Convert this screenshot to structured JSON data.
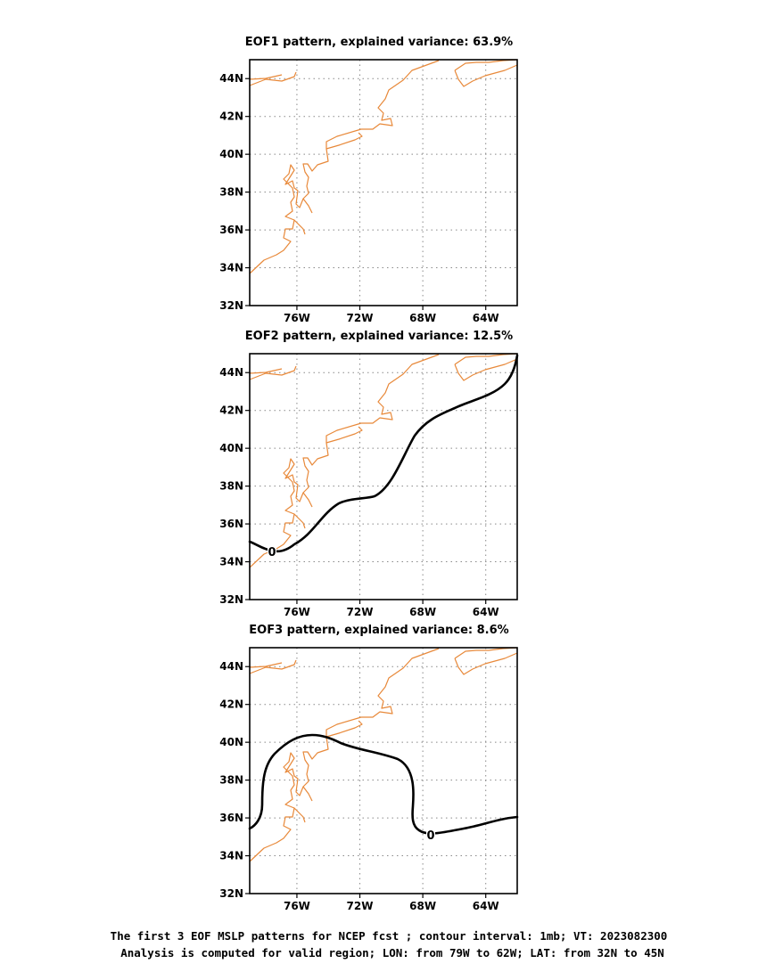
{
  "figure": {
    "panels": [
      {
        "title": "EOF1 pattern, explained variance: 63.9%",
        "contour_label": ""
      },
      {
        "title": "EOF2 pattern, explained variance: 12.5%",
        "contour_label": "0"
      },
      {
        "title": "EOF3 pattern, explained variance: 8.6%",
        "contour_label": "0"
      }
    ],
    "lon_ticks": [
      "76W",
      "72W",
      "68W",
      "64W"
    ],
    "lat_ticks": [
      "44N",
      "42N",
      "40N",
      "38N",
      "36N",
      "34N",
      "32N"
    ],
    "footer_line1": "The first 3 EOF MSLP patterns for NCEP fcst ; contour interval: 1mb; VT: 2023082300",
    "footer_line2": "Analysis is computed for valid region; LON: from 79W to 62W; LAT: from 32N to 45N"
  },
  "map": {
    "lon_range": [
      -79,
      -62
    ],
    "lat_range": [
      32,
      45
    ],
    "coastline_color": "#e8893a",
    "contour_color": "#000000",
    "contour_interval": "1mb"
  }
}
